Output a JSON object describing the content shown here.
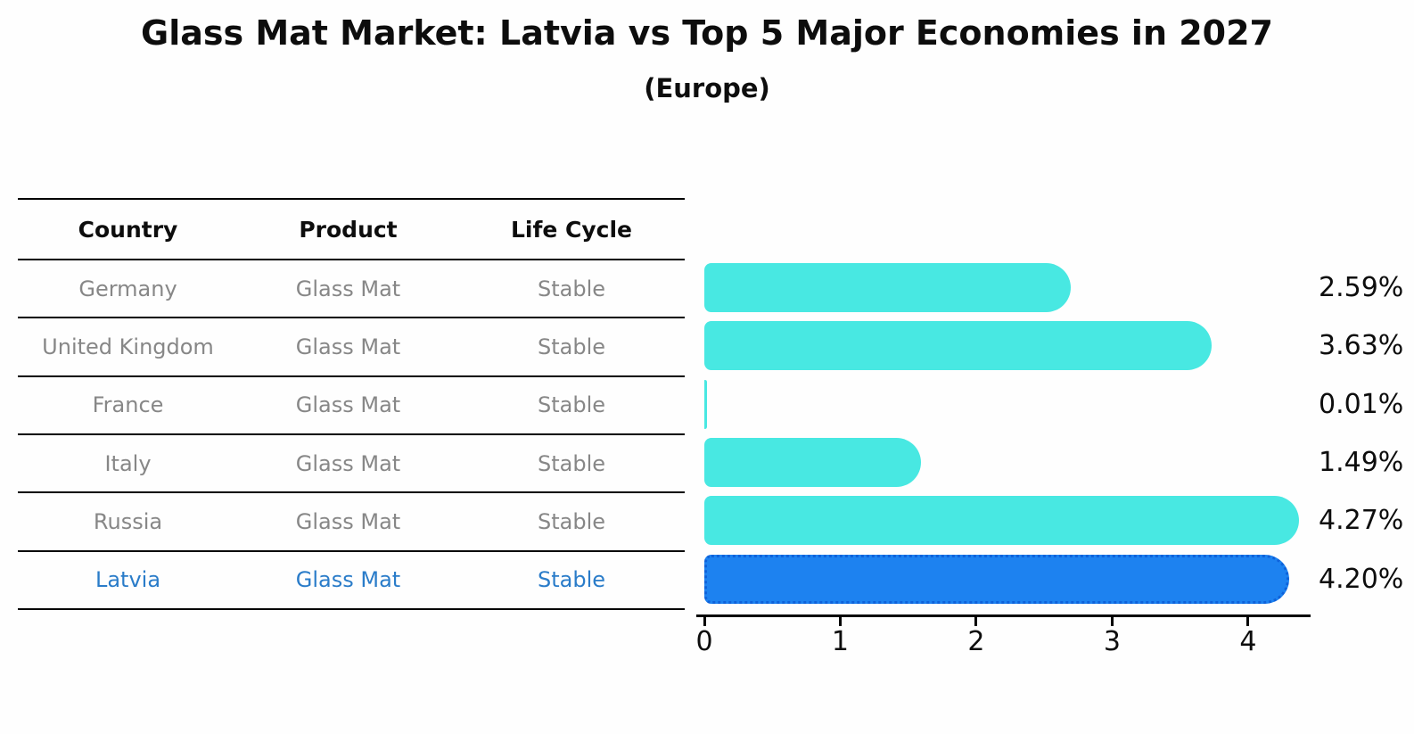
{
  "header": {
    "title": "Glass Mat Market: Latvia vs Top 5 Major Economies in 2027",
    "subtitle": "(Europe)"
  },
  "table": {
    "columns": [
      "Country",
      "Product",
      "Life Cycle"
    ],
    "rows": [
      {
        "country": "Germany",
        "product": "Glass Mat",
        "life_cycle": "Stable",
        "highlighted": false
      },
      {
        "country": "United Kingdom",
        "product": "Glass Mat",
        "life_cycle": "Stable",
        "highlighted": false
      },
      {
        "country": "France",
        "product": "Glass Mat",
        "life_cycle": "Stable",
        "highlighted": false
      },
      {
        "country": "Italy",
        "product": "Glass Mat",
        "life_cycle": "Stable",
        "highlighted": false
      },
      {
        "country": "Russia",
        "product": "Glass Mat",
        "life_cycle": "Stable",
        "highlighted": false
      },
      {
        "country": "Latvia",
        "product": "Glass Mat",
        "life_cycle": "Stable",
        "highlighted": true
      }
    ]
  },
  "chart_data": {
    "type": "bar",
    "orientation": "horizontal",
    "title": "Glass Mat Market: Latvia vs Top 5 Major Economies in 2027",
    "subtitle": "(Europe)",
    "categories": [
      "Germany",
      "United Kingdom",
      "France",
      "Italy",
      "Russia",
      "Latvia"
    ],
    "values": [
      2.59,
      3.63,
      0.01,
      1.49,
      4.27,
      4.2
    ],
    "value_labels": [
      "2.59%",
      "3.63%",
      "0.01%",
      "1.49%",
      "4.27%",
      "4.20%"
    ],
    "xlabel": "",
    "ylabel": "",
    "xlim": [
      0,
      4.46
    ],
    "xticks": [
      "0",
      "1",
      "2",
      "3",
      "4"
    ],
    "grid": false,
    "legend": false,
    "bar_color": "#48e8e2",
    "highlight_bar_color": "#1d82f0",
    "highlight_border_color": "#0e62da",
    "highlight_index": 5
  },
  "colors": {
    "row_text": "#878787",
    "highlight_text": "#2a7cc9",
    "header_text": "#0d0d0d",
    "line": "#000000"
  }
}
